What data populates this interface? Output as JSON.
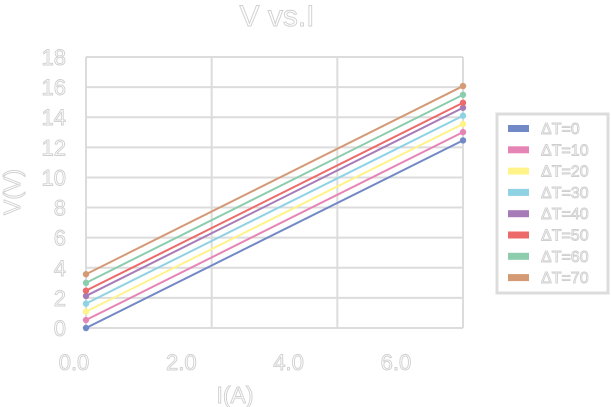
{
  "chart_data": {
    "type": "line",
    "title": "V vs.I",
    "xlabel": "I(A)",
    "ylabel": "V(V)",
    "xlim": [
      0,
      6
    ],
    "ylim": [
      0,
      18
    ],
    "xticks": [
      "0.0",
      "2.0",
      "4.0",
      "6.0"
    ],
    "yticks": [
      "0",
      "2",
      "4",
      "6",
      "8",
      "10",
      "12",
      "14",
      "16",
      "18"
    ],
    "grid": true,
    "legend_placement": "right",
    "x": [
      0,
      6
    ],
    "series": [
      {
        "name": "ΔT=0",
        "color": "#7289c7",
        "values": [
          0.0,
          12.46
        ]
      },
      {
        "name": "ΔT=10",
        "color": "#e685b5",
        "values": [
          0.53,
          13.01
        ]
      },
      {
        "name": "ΔT=20",
        "color": "#fff38a",
        "values": [
          1.09,
          13.55
        ]
      },
      {
        "name": "ΔT=30",
        "color": "#8ed2e4",
        "values": [
          1.62,
          14.1
        ]
      },
      {
        "name": "ΔT=40",
        "color": "#a77bb8",
        "values": [
          2.13,
          14.63
        ]
      },
      {
        "name": "ΔT=50",
        "color": "#ec6a6a",
        "values": [
          2.48,
          14.96
        ]
      },
      {
        "name": "ΔT=60",
        "color": "#8ccdae",
        "values": [
          3.0,
          15.49
        ]
      },
      {
        "name": "ΔT=70",
        "color": "#d49a74",
        "values": [
          3.57,
          16.07
        ]
      }
    ]
  }
}
